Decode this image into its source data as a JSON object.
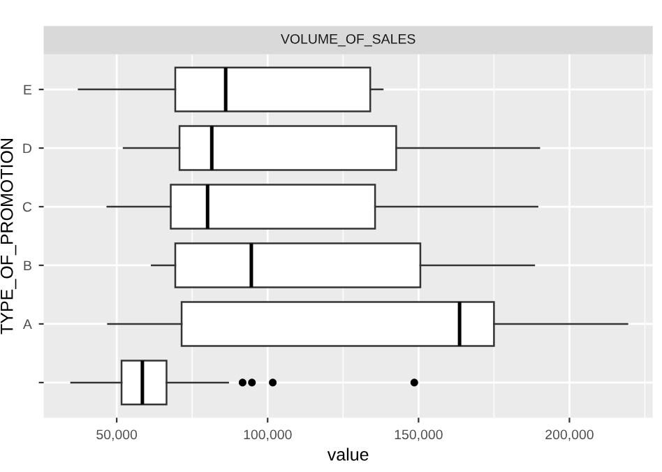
{
  "chart_data": {
    "type": "box",
    "orientation": "horizontal",
    "title": "VOLUME_OF_SALES",
    "xlabel": "value",
    "ylabel": "TYPE_OF_PROMOTION",
    "categories": [
      "E",
      "D",
      "C",
      "B",
      "A",
      null
    ],
    "boxes": [
      {
        "low": 37400,
        "q1": 69400,
        "median": 86100,
        "q3": 134000,
        "high": 138100
      },
      {
        "low": 52300,
        "q1": 70800,
        "median": 81500,
        "q3": 142600,
        "high": 190000
      },
      {
        "low": 46900,
        "q1": 67900,
        "median": 80100,
        "q3": 135600,
        "high": 189400
      },
      {
        "low": 61600,
        "q1": 69400,
        "median": 94600,
        "q3": 150600,
        "high": 188300
      },
      {
        "low": 47100,
        "q1": 71500,
        "median": 163600,
        "q3": 175000,
        "high": 219200
      },
      {
        "low": 34900,
        "q1": 51600,
        "median": 58500,
        "q3": 66500,
        "high": 86900,
        "outliers": [
          91700,
          94800,
          101700,
          148600
        ]
      }
    ],
    "xlim": [
      25800,
      227600
    ],
    "xticks": [
      {
        "value": 50000,
        "label": "50,000"
      },
      {
        "value": 100000,
        "label": "100,000"
      },
      {
        "value": 150000,
        "label": "150,000"
      },
      {
        "value": 200000,
        "label": "200,000"
      }
    ],
    "grid": true
  }
}
